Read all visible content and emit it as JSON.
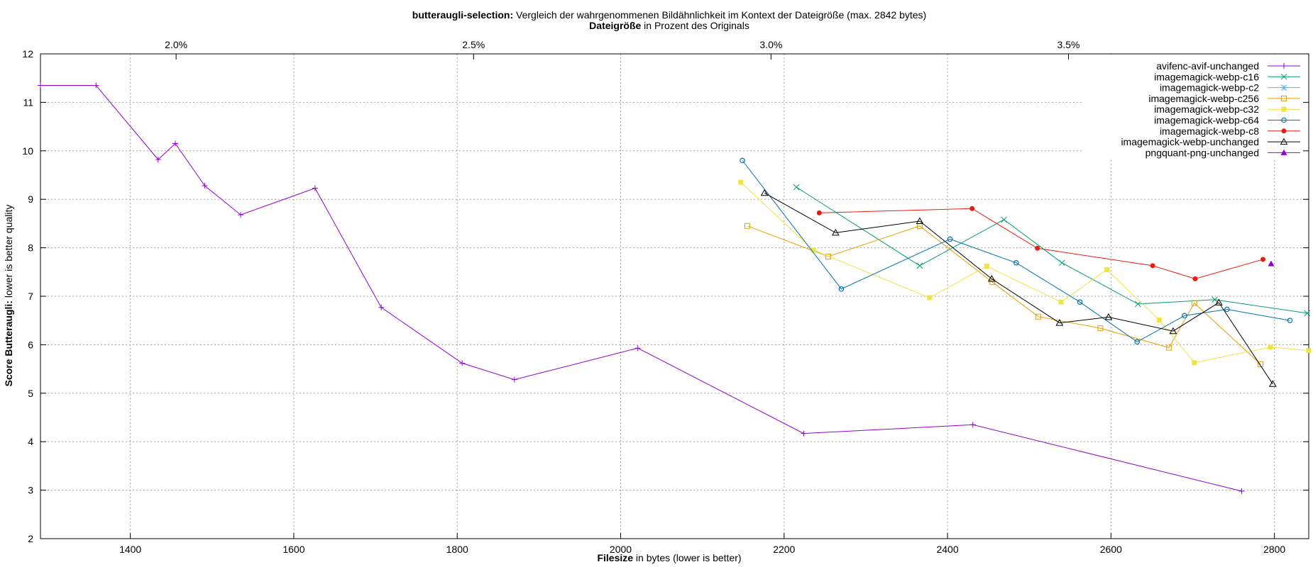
{
  "chart_data": {
    "type": "line",
    "title_bold": "butteraugli-selection:",
    "title_rest": " Vergleich der wahrgenommenen Bildähnlichkeit im Kontext der Dateigröße (max. 2842 bytes)",
    "subtitle_bold": "Dateigröße",
    "subtitle_rest": " in Prozent des Originals",
    "xlabel_bold": "Filesize",
    "xlabel_rest": " in bytes (lower is better)",
    "ylabel_bold": "Score Butteraugli:",
    "ylabel_rest": " lower is better quality",
    "xlim": [
      1290,
      2842
    ],
    "ylim": [
      2,
      12
    ],
    "x_ticks": [
      1400,
      1600,
      1800,
      2000,
      2200,
      2400,
      2600,
      2800
    ],
    "y_ticks": [
      2,
      3,
      4,
      5,
      6,
      7,
      8,
      9,
      10,
      11,
      12
    ],
    "x2_ticks": [
      {
        "value": 2.0,
        "label": "2.0%"
      },
      {
        "value": 2.5,
        "label": "2.5%"
      },
      {
        "value": 3.0,
        "label": "3.0%"
      },
      {
        "value": 3.5,
        "label": "3.5%"
      }
    ],
    "x2_original_bytes": 72800,
    "grid": true,
    "legend_position": "top-right",
    "series": [
      {
        "name": "avifenc-avif-unchanged",
        "color": "#9400d3",
        "marker": "plus",
        "points": [
          [
            1290,
            11.35
          ],
          [
            1358,
            11.35
          ],
          [
            1434,
            9.82
          ],
          [
            1455,
            10.15
          ],
          [
            1491,
            9.28
          ],
          [
            1535,
            8.68
          ],
          [
            1626,
            9.23
          ],
          [
            1707,
            6.77
          ],
          [
            1806,
            5.62
          ],
          [
            1870,
            5.28
          ],
          [
            2021,
            5.93
          ],
          [
            2224,
            4.17
          ],
          [
            2431,
            4.35
          ],
          [
            2760,
            2.98
          ]
        ]
      },
      {
        "name": "imagemagick-webp-c16",
        "color": "#009e73",
        "marker": "x",
        "points": [
          [
            2215,
            9.25
          ],
          [
            2366,
            7.63
          ],
          [
            2469,
            8.58
          ],
          [
            2540,
            7.69
          ],
          [
            2633,
            6.84
          ],
          [
            2727,
            6.93
          ],
          [
            2840,
            6.65
          ]
        ]
      },
      {
        "name": "imagemagick-webp-c2",
        "color": "#56b4e9",
        "marker": "star",
        "points": []
      },
      {
        "name": "imagemagick-webp-c256",
        "color": "#e69f00",
        "marker": "box",
        "points": [
          [
            2155,
            8.45
          ],
          [
            2254,
            7.82
          ],
          [
            2366,
            8.45
          ],
          [
            2455,
            7.29
          ],
          [
            2511,
            6.58
          ],
          [
            2587,
            6.34
          ],
          [
            2671,
            5.94
          ],
          [
            2702,
            6.86
          ],
          [
            2783,
            5.6
          ]
        ]
      },
      {
        "name": "imagemagick-webp-c32",
        "color": "#f0e442",
        "marker": "fbox",
        "points": [
          [
            2147,
            9.35
          ],
          [
            2236,
            7.95
          ],
          [
            2378,
            6.97
          ],
          [
            2448,
            7.62
          ],
          [
            2539,
            6.88
          ],
          [
            2595,
            7.55
          ],
          [
            2659,
            6.51
          ],
          [
            2702,
            5.63
          ],
          [
            2795,
            5.95
          ],
          [
            2842,
            5.88
          ]
        ]
      },
      {
        "name": "imagemagick-webp-c64",
        "color": "#0072b2",
        "marker": "circle",
        "points": [
          [
            2149,
            9.8
          ],
          [
            2270,
            7.15
          ],
          [
            2403,
            8.18
          ],
          [
            2484,
            7.69
          ],
          [
            2562,
            6.88
          ],
          [
            2632,
            6.06
          ],
          [
            2690,
            6.6
          ],
          [
            2742,
            6.73
          ],
          [
            2819,
            6.5
          ]
        ]
      },
      {
        "name": "imagemagick-webp-c8",
        "color": "#e51e10",
        "marker": "fcircle",
        "points": [
          [
            2243,
            8.72
          ],
          [
            2430,
            8.81
          ],
          [
            2510,
            7.99
          ],
          [
            2651,
            7.63
          ],
          [
            2703,
            7.36
          ],
          [
            2786,
            7.76
          ]
        ]
      },
      {
        "name": "imagemagick-webp-unchanged",
        "color": "#000000",
        "marker": "triangle",
        "points": [
          [
            2176,
            9.13
          ],
          [
            2263,
            8.31
          ],
          [
            2366,
            8.55
          ],
          [
            2454,
            7.36
          ],
          [
            2537,
            6.45
          ],
          [
            2597,
            6.57
          ],
          [
            2676,
            6.28
          ],
          [
            2732,
            6.87
          ],
          [
            2798,
            5.19
          ]
        ]
      },
      {
        "name": "pngquant-png-unchanged",
        "color": "#9400d3",
        "marker": "ftriangle",
        "points": [
          [
            2796,
            7.67
          ]
        ]
      }
    ]
  }
}
